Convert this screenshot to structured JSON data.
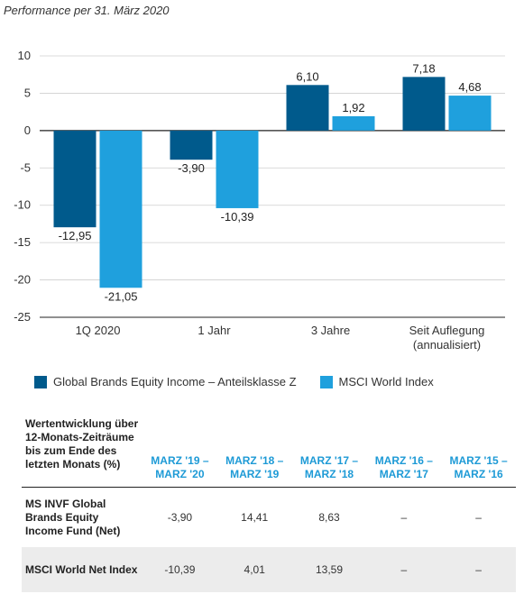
{
  "chart_data": {
    "type": "bar",
    "title": "Performance per 31. März 2020",
    "categories": [
      "1Q 2020",
      "1 Jahr",
      "3 Jahre",
      "Seit Auflegung\n(annualisiert)"
    ],
    "series": [
      {
        "name": "Global Brands Equity Income – Anteilsklasse Z",
        "color": "#005a8c",
        "values": [
          -12.95,
          -3.9,
          6.1,
          7.18
        ],
        "labels": [
          "-12,95",
          "-3,90",
          "6,10",
          "7,18"
        ]
      },
      {
        "name": "MSCI World Index",
        "color": "#1fa0dd",
        "values": [
          -21.05,
          -10.39,
          1.92,
          4.68
        ],
        "labels": [
          "-21,05",
          "-10,39",
          "1,92",
          "4,68"
        ]
      }
    ],
    "ylim": [
      -25,
      10
    ],
    "yticks": [
      10,
      5,
      0,
      -5,
      -10,
      -15,
      -20,
      -25
    ],
    "grid": true,
    "legend": "bottom"
  },
  "table": {
    "header_label": "Wertentwicklung über 12-Monats-Zeiträume bis zum Ende des letzten Monats (%)",
    "columns": [
      "MARZ '19 – MARZ '20",
      "MARZ '18 – MARZ '19",
      "MARZ '17 – MARZ '18",
      "MARZ '16 – MARZ '17",
      "MARZ '15 – MARZ '16"
    ],
    "rows": [
      {
        "label": "MS INVF Global Brands Equity Income Fund (Net)",
        "values": [
          "-3,90",
          "14,41",
          "8,63",
          "–",
          "–"
        ]
      },
      {
        "label": "MSCI World Net Index",
        "values": [
          "-10,39",
          "4,01",
          "13,59",
          "–",
          "–"
        ]
      }
    ]
  }
}
